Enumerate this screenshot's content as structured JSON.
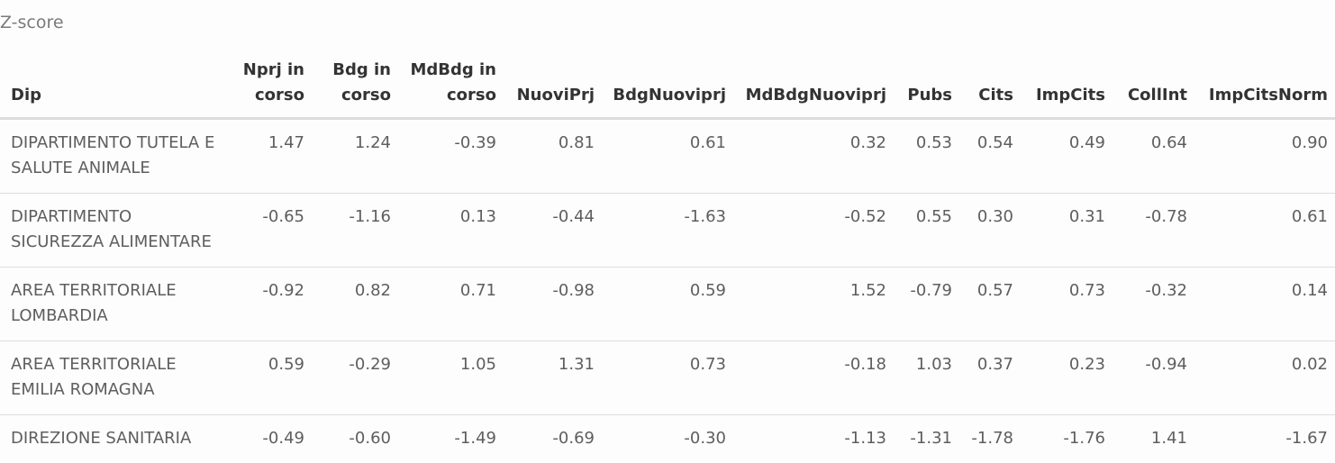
{
  "caption": "Z-score",
  "table": {
    "headers": [
      "Dip",
      "Nprj in corso",
      "Bdg in corso",
      "MdBdg in corso",
      "NuoviPrj",
      "BdgNuoviprj",
      "MdBdgNuoviprj",
      "Pubs",
      "Cits",
      "ImpCits",
      "CollInt",
      "ImpCitsNorm"
    ],
    "rows": [
      [
        "DIPARTIMENTO TUTELA E SALUTE ANIMALE",
        "1.47",
        "1.24",
        "-0.39",
        "0.81",
        "0.61",
        "0.32",
        "0.53",
        "0.54",
        "0.49",
        "0.64",
        "0.90"
      ],
      [
        "DIPARTIMENTO SICUREZZA ALIMENTARE",
        "-0.65",
        "-1.16",
        "0.13",
        "-0.44",
        "-1.63",
        "-0.52",
        "0.55",
        "0.30",
        "0.31",
        "-0.78",
        "0.61"
      ],
      [
        "AREA TERRITORIALE LOMBARDIA",
        "-0.92",
        "0.82",
        "0.71",
        "-0.98",
        "0.59",
        "1.52",
        "-0.79",
        "0.57",
        "0.73",
        "-0.32",
        "0.14"
      ],
      [
        "AREA TERRITORIALE EMILIA ROMAGNA",
        "0.59",
        "-0.29",
        "1.05",
        "1.31",
        "0.73",
        "-0.18",
        "1.03",
        "0.37",
        "0.23",
        "-0.94",
        "0.02"
      ],
      [
        "DIREZIONE SANITARIA",
        "-0.49",
        "-0.60",
        "-1.49",
        "-0.69",
        "-0.30",
        "-1.13",
        "-1.31",
        "-1.78",
        "-1.76",
        "1.41",
        "-1.67"
      ]
    ]
  }
}
